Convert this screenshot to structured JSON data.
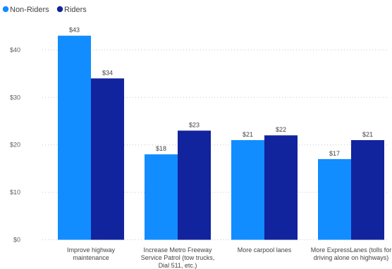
{
  "chart_data": {
    "type": "bar",
    "categories": [
      [
        "Improve highway",
        "maintenance"
      ],
      [
        "Increase Metro Freeway",
        "Service Patrol (tow trucks,",
        "Dial 511, etc.)"
      ],
      [
        "More carpool lanes"
      ],
      [
        "More ExpressLanes (tolls for",
        "driving alone on highways)"
      ]
    ],
    "series": [
      {
        "name": "Non-Riders",
        "color": "#118dff",
        "values": [
          43,
          18,
          21,
          17
        ],
        "labels": [
          "$43",
          "$18",
          "$21",
          "$17"
        ]
      },
      {
        "name": "Riders",
        "color": "#12239e",
        "values": [
          34,
          23,
          22,
          21
        ],
        "labels": [
          "$34",
          "$23",
          "$22",
          "$21"
        ]
      }
    ],
    "ylim": [
      0,
      45
    ],
    "yticks": [
      0,
      10,
      20,
      30,
      40
    ],
    "ytick_labels": [
      "$0",
      "$10",
      "$20",
      "$30",
      "$40"
    ],
    "grid": true,
    "legend_position": "top-left"
  }
}
